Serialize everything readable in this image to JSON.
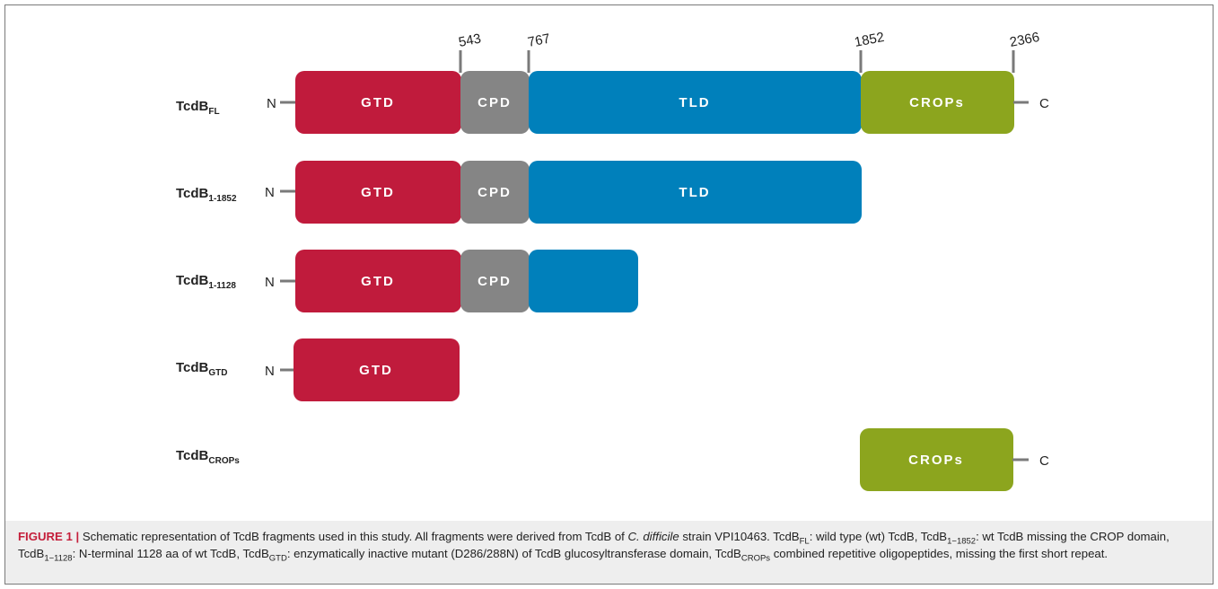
{
  "positions": {
    "p543": "543",
    "p767": "767",
    "p1852": "1852",
    "p2366": "2366"
  },
  "terminals": {
    "n": "N",
    "c": "C"
  },
  "domain_labels": {
    "gtd": "GTD",
    "cpd": "CPD",
    "tld": "TLD",
    "crops": "CROPs"
  },
  "colors": {
    "gtd": "#c01b3c",
    "cpd": "#858585",
    "tld": "#0080bb",
    "crops": "#8ca51e",
    "connector": "#7a7a7a",
    "caption_background": "#eeeeee",
    "figure_label": "#c41e3a"
  },
  "constructs": [
    {
      "main": "TcdB",
      "sub": "FL"
    },
    {
      "main": "TcdB",
      "sub": "1-1852"
    },
    {
      "main": "TcdB",
      "sub": "1-1128"
    },
    {
      "main": "TcdB",
      "sub": "GTD"
    },
    {
      "main": "TcdB",
      "sub": "CROPs"
    }
  ],
  "caption": {
    "label": "FIGURE 1 |",
    "text1": " Schematic representation of TcdB fragments used in this study. All fragments were derived from TcdB of ",
    "organism": "C. difficile",
    "text2": " strain VPI10463. TcdB",
    "sub_fl": "FL",
    "text3": ": wild type (wt) TcdB, TcdB",
    "sub_1852": "1−1852",
    "text4": ": wt TcdB missing the CROP domain, TcdB",
    "sub_1128": "1−1128",
    "text5": ": N-terminal 1128 aa of wt TcdB, TcdB",
    "sub_gtd": "GTD",
    "text6": ": enzymatically inactive mutant (D286/288N) of TcdB glucosyltransferase domain, TcdB",
    "sub_crops": "CROPs",
    "text7": " combined repetitive oligopeptides, missing the first short repeat."
  }
}
